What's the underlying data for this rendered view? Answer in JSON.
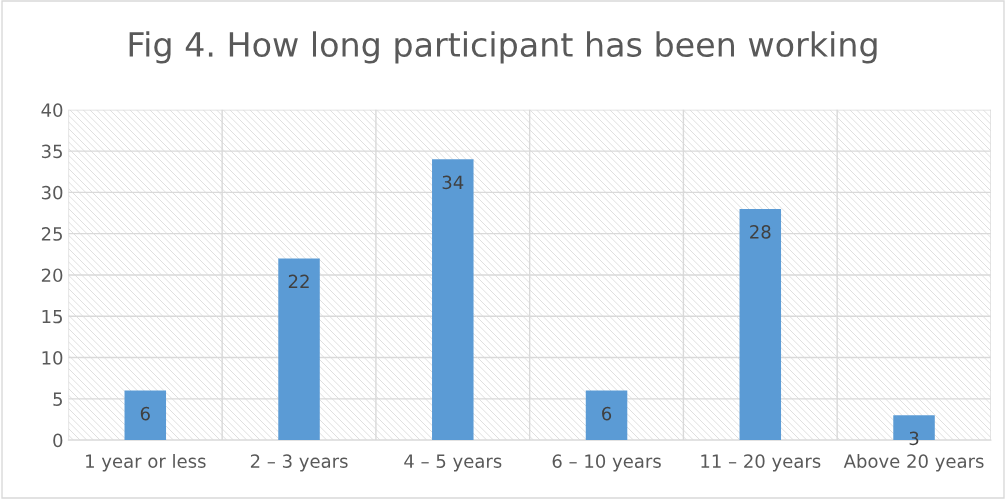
{
  "chart_data": {
    "type": "bar",
    "title": "Fig 4. How long participant has been working",
    "categories": [
      "1 year or less",
      "2 – 3 years",
      "4 – 5 years",
      "6 – 10 years",
      "11 – 20 years",
      "Above 20 years"
    ],
    "values": [
      6,
      22,
      34,
      6,
      28,
      3
    ],
    "color": "#5b9bd5",
    "ylim": [
      0,
      40
    ],
    "yticks": [
      0,
      5,
      10,
      15,
      20,
      25,
      30,
      35,
      40
    ],
    "grid": true,
    "data_labels": true
  }
}
